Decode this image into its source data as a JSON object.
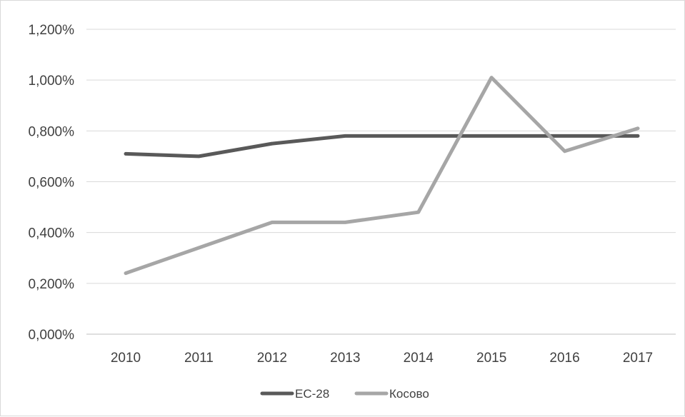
{
  "chart_data": {
    "type": "line",
    "title": "",
    "xlabel": "",
    "ylabel": "",
    "categories": [
      "2010",
      "2011",
      "2012",
      "2013",
      "2014",
      "2015",
      "2016",
      "2017"
    ],
    "ylim": [
      0,
      1.2
    ],
    "yticks": [
      0,
      0.2,
      0.4,
      0.6,
      0.8,
      1.0,
      1.2
    ],
    "ytick_labels": [
      "0,000%",
      "0,200%",
      "0,400%",
      "0,600%",
      "0,800%",
      "1,000%",
      "1,200%"
    ],
    "grid": true,
    "legend_position": "bottom",
    "series": [
      {
        "name": "ЕС-28",
        "color": "#595959",
        "values": [
          0.71,
          0.7,
          0.75,
          0.78,
          0.78,
          0.78,
          0.78,
          0.78
        ]
      },
      {
        "name": "Косово",
        "color": "#a6a6a6",
        "values": [
          0.24,
          0.34,
          0.44,
          0.44,
          0.48,
          1.01,
          0.72,
          0.81
        ]
      }
    ]
  }
}
